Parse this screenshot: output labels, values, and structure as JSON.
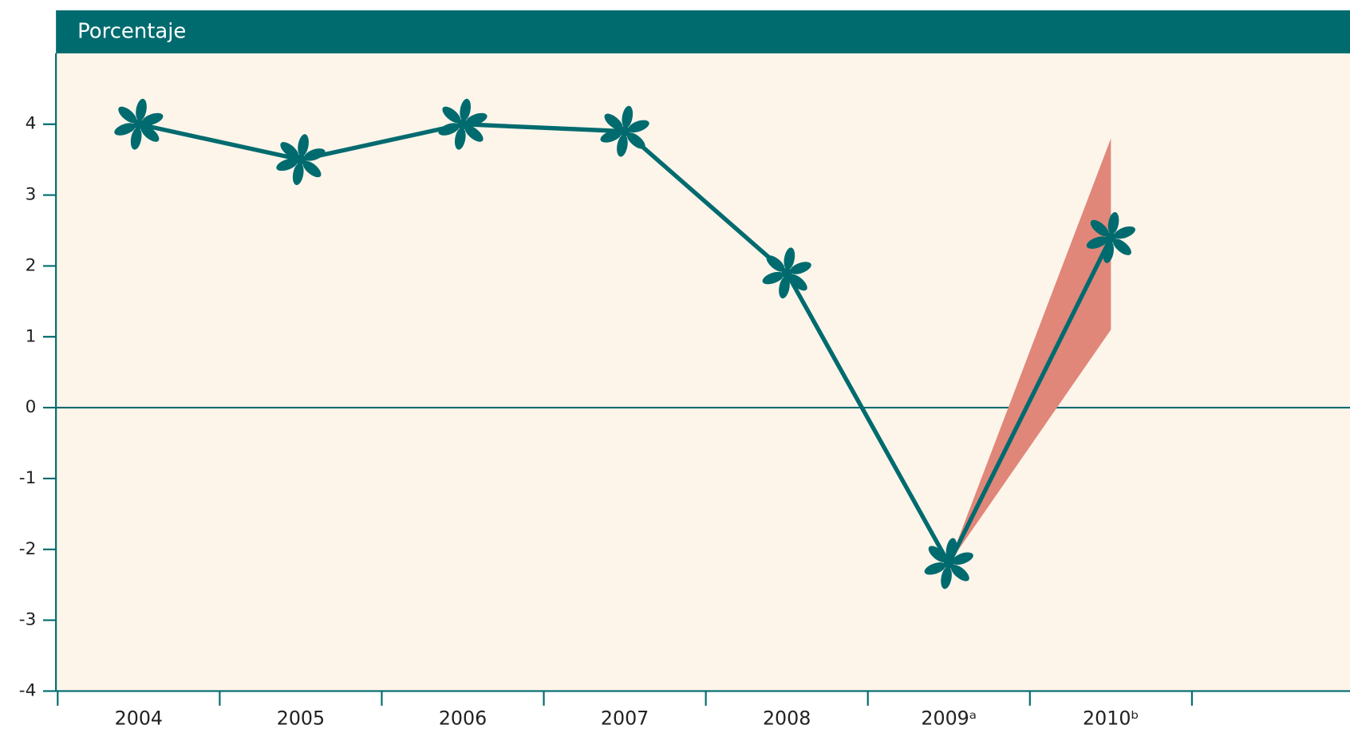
{
  "chart_data": {
    "type": "line",
    "title": "Porcentaje",
    "categories": [
      "2004",
      "2005",
      "2006",
      "2007",
      "2008",
      "2009ᵃ",
      "2010ᵇ"
    ],
    "series": [
      {
        "color": "#006b6f",
        "values": [
          4.0,
          3.5,
          4.0,
          3.9,
          1.9,
          -2.2,
          2.4
        ]
      }
    ],
    "band": {
      "color": "#e0877a",
      "low": [
        null,
        null,
        null,
        null,
        null,
        -2.2,
        1.1
      ],
      "high": [
        null,
        null,
        null,
        null,
        null,
        -2.2,
        3.8
      ]
    },
    "ylim": [
      -4,
      5
    ],
    "yticks": [
      -4,
      -3,
      -2,
      -1,
      0,
      1,
      2,
      3,
      4
    ],
    "background": "#fdf5ea",
    "header_color": "#006b6f"
  }
}
